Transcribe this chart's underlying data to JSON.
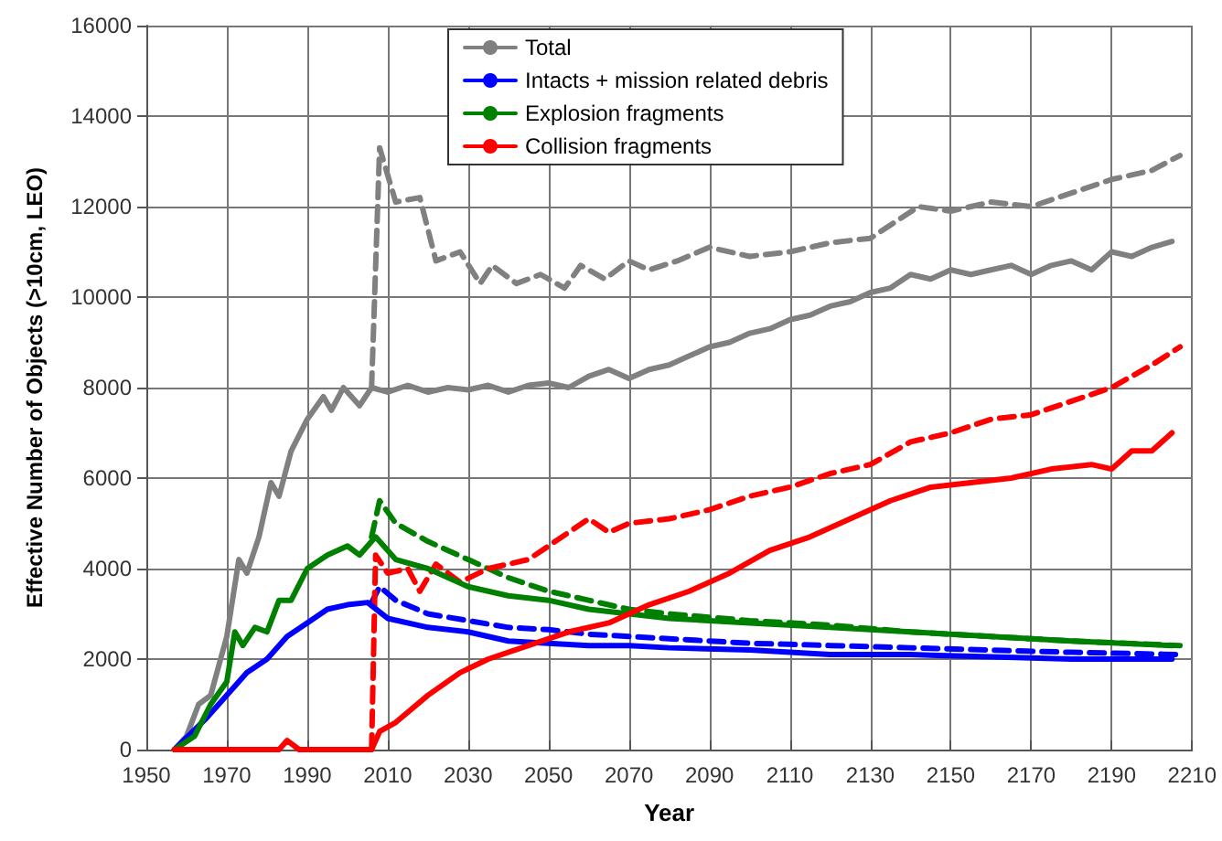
{
  "chart_data": {
    "type": "line",
    "xlabel": "Year",
    "ylabel": "Effective Number of Objects (>10cm, LEO)",
    "xlim": [
      1950,
      2210
    ],
    "xticks": [
      1950,
      1970,
      1990,
      2010,
      2030,
      2050,
      2070,
      2090,
      2110,
      2130,
      2150,
      2170,
      2190,
      2210
    ],
    "ylim": [
      0,
      16000
    ],
    "yticks": [
      0,
      2000,
      4000,
      6000,
      8000,
      10000,
      12000,
      14000,
      16000
    ],
    "grid": true,
    "legend": "top",
    "marker": "none",
    "series": [
      {
        "name": "Total",
        "color": "#808080",
        "line_style": "solid",
        "x": [
          1957,
          1960,
          1963,
          1966,
          1970,
          1973,
          1975,
          1978,
          1981,
          1983,
          1986,
          1990,
          1994,
          1996,
          1999,
          2003,
          2006,
          2010,
          2015,
          2020,
          2025,
          2030,
          2035,
          2040,
          2045,
          2050,
          2055,
          2060,
          2065,
          2070,
          2075,
          2080,
          2085,
          2090,
          2095,
          2100,
          2105,
          2110,
          2115,
          2120,
          2125,
          2130,
          2135,
          2140,
          2145,
          2150,
          2155,
          2160,
          2165,
          2170,
          2175,
          2180,
          2185,
          2190,
          2195,
          2200,
          2205
        ],
        "values": [
          0,
          300,
          1000,
          1200,
          2500,
          4200,
          3900,
          4700,
          5900,
          5600,
          6600,
          7300,
          7800,
          7500,
          8000,
          7600,
          8000,
          7900,
          8050,
          7900,
          8000,
          7950,
          8050,
          7900,
          8050,
          8100,
          8000,
          8250,
          8400,
          8200,
          8400,
          8500,
          8700,
          8900,
          9000,
          9200,
          9300,
          9500,
          9600,
          9800,
          9900,
          10100,
          10200,
          10500,
          10400,
          10600,
          10500,
          10600,
          10700,
          10500,
          10700,
          10800,
          10600,
          11000,
          10900,
          11100,
          11230
        ]
      },
      {
        "name": "Intacts + mission related debris",
        "color": "#0000ff",
        "line_style": "solid",
        "x": [
          1957,
          1965,
          1970,
          1975,
          1980,
          1985,
          1990,
          1995,
          2000,
          2005,
          2010,
          2020,
          2030,
          2040,
          2050,
          2060,
          2070,
          2080,
          2100,
          2120,
          2140,
          2160,
          2180,
          2205
        ],
        "values": [
          0,
          700,
          1200,
          1700,
          2000,
          2500,
          2800,
          3100,
          3200,
          3250,
          2900,
          2700,
          2600,
          2400,
          2350,
          2300,
          2300,
          2250,
          2200,
          2100,
          2100,
          2050,
          2000,
          2000
        ]
      },
      {
        "name": "Explosion fragments",
        "color": "#008000",
        "line_style": "solid",
        "x": [
          1957,
          1962,
          1966,
          1970,
          1972,
          1974,
          1977,
          1980,
          1983,
          1986,
          1990,
          1995,
          2000,
          2003,
          2007,
          2012,
          2020,
          2030,
          2040,
          2050,
          2060,
          2070,
          2080,
          2100,
          2120,
          2140,
          2160,
          2180,
          2205
        ],
        "values": [
          0,
          300,
          1000,
          1500,
          2600,
          2300,
          2700,
          2600,
          3300,
          3300,
          4000,
          4300,
          4500,
          4300,
          4700,
          4200,
          4000,
          3600,
          3400,
          3300,
          3100,
          3000,
          2900,
          2800,
          2700,
          2600,
          2500,
          2400,
          2300
        ]
      },
      {
        "name": "Collision fragments",
        "color": "#ff0000",
        "line_style": "solid",
        "x": [
          1957,
          1983,
          1985,
          1988,
          2006,
          2008,
          2012,
          2020,
          2028,
          2035,
          2045,
          2055,
          2065,
          2075,
          2085,
          2095,
          2105,
          2115,
          2125,
          2135,
          2145,
          2155,
          2165,
          2175,
          2185,
          2190,
          2195,
          2200,
          2205
        ],
        "values": [
          0,
          0,
          200,
          0,
          0,
          400,
          600,
          1200,
          1700,
          2000,
          2300,
          2600,
          2800,
          3200,
          3500,
          3900,
          4400,
          4700,
          5100,
          5500,
          5800,
          5900,
          6000,
          6200,
          6300,
          6200,
          6600,
          6600,
          7000
        ]
      },
      {
        "color": "#808080",
        "line_style": "dashed",
        "x": [
          2006,
          2008,
          2012,
          2018,
          2022,
          2028,
          2033,
          2036,
          2042,
          2048,
          2054,
          2058,
          2064,
          2070,
          2075,
          2082,
          2090,
          2100,
          2110,
          2120,
          2130,
          2142,
          2150,
          2160,
          2170,
          2180,
          2190,
          2200,
          2207
        ],
        "values": [
          8000,
          13300,
          12100,
          12200,
          10800,
          11000,
          10300,
          10700,
          10300,
          10500,
          10200,
          10700,
          10400,
          10800,
          10600,
          10800,
          11100,
          10900,
          11000,
          11200,
          11300,
          12000,
          11900,
          12100,
          12000,
          12300,
          12600,
          12800,
          13130
        ]
      },
      {
        "color": "#0000ff",
        "line_style": "dashed",
        "x": [
          2006,
          2008,
          2012,
          2020,
          2030,
          2040,
          2050,
          2060,
          2070,
          2080,
          2100,
          2120,
          2140,
          2160,
          2180,
          2207
        ],
        "values": [
          3250,
          3600,
          3300,
          3000,
          2850,
          2700,
          2650,
          2550,
          2500,
          2450,
          2350,
          2300,
          2250,
          2200,
          2150,
          2100
        ]
      },
      {
        "color": "#008000",
        "line_style": "dashed",
        "x": [
          2006,
          2008,
          2012,
          2020,
          2030,
          2040,
          2050,
          2060,
          2070,
          2080,
          2100,
          2120,
          2140,
          2160,
          2180,
          2207
        ],
        "values": [
          4700,
          5500,
          5000,
          4600,
          4200,
          3800,
          3500,
          3300,
          3100,
          3000,
          2850,
          2750,
          2600,
          2500,
          2400,
          2300
        ]
      },
      {
        "color": "#ff0000",
        "line_style": "dashed",
        "x": [
          2006,
          2007,
          2010,
          2015,
          2018,
          2022,
          2028,
          2035,
          2045,
          2055,
          2060,
          2065,
          2070,
          2080,
          2090,
          2100,
          2110,
          2120,
          2130,
          2140,
          2150,
          2160,
          2170,
          2180,
          2190,
          2200,
          2207
        ],
        "values": [
          0,
          4300,
          3900,
          4000,
          3500,
          4100,
          3700,
          4000,
          4200,
          4800,
          5100,
          4800,
          5000,
          5100,
          5300,
          5600,
          5800,
          6100,
          6300,
          6800,
          7000,
          7300,
          7400,
          7700,
          8000,
          8500,
          8900
        ]
      }
    ]
  }
}
